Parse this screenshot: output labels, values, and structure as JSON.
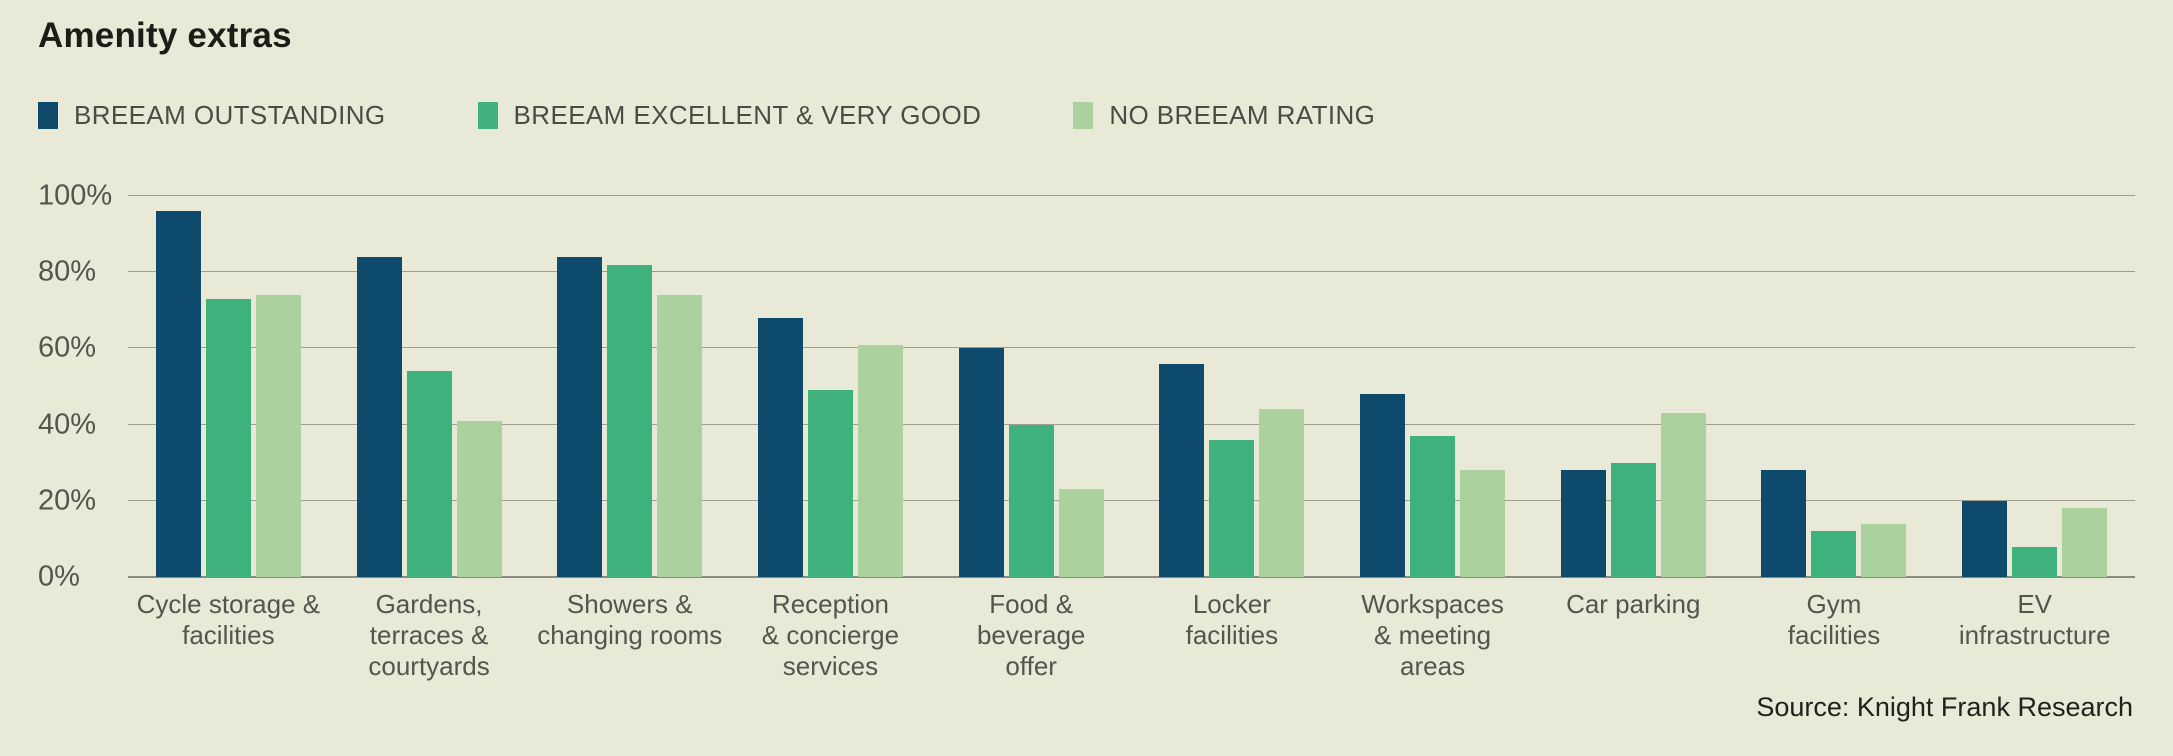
{
  "title": "Amenity extras",
  "source": "Source: Knight Frank Research",
  "colors": {
    "background": "#e9e9d8",
    "gridline": "#9d9d92",
    "axis_text": "#54554c",
    "title_text": "#1b1d16"
  },
  "legend": [
    {
      "label": "BREEAM OUTSTANDING",
      "color": "#0d4a6b"
    },
    {
      "label": "BREEAM EXCELLENT & VERY GOOD",
      "color": "#3eb17d"
    },
    {
      "label": "NO BREEAM RATING",
      "color": "#abd29e"
    }
  ],
  "chart_data": {
    "type": "bar",
    "title": "Amenity extras",
    "categories": [
      "Cycle storage & facilities",
      "Gardens, terraces & courtyards",
      "Showers & changing rooms",
      "Reception & concierge services",
      "Food & beverage offer",
      "Locker facilities",
      "Workspaces & meeting areas",
      "Car parking",
      "Gym facilities",
      "EV infrastructure"
    ],
    "category_label_lines": [
      [
        "Cycle storage &",
        "facilities"
      ],
      [
        "Gardens,",
        "terraces &",
        "courtyards"
      ],
      [
        "Showers &",
        "changing rooms"
      ],
      [
        "Reception",
        "& concierge",
        "services"
      ],
      [
        "Food &",
        "beverage",
        "offer"
      ],
      [
        "Locker",
        "facilities"
      ],
      [
        "Workspaces",
        "& meeting",
        "areas"
      ],
      [
        "Car parking"
      ],
      [
        "Gym",
        "facilities"
      ],
      [
        "EV",
        "infrastructure"
      ]
    ],
    "series": [
      {
        "name": "BREEAM OUTSTANDING",
        "color": "#0d4a6b",
        "values": [
          96,
          84,
          84,
          68,
          60,
          56,
          48,
          28,
          28,
          20
        ]
      },
      {
        "name": "BREEAM EXCELLENT & VERY GOOD",
        "color": "#3eb17d",
        "values": [
          73,
          54,
          82,
          49,
          40,
          36,
          37,
          30,
          12,
          8
        ]
      },
      {
        "name": "NO BREEAM RATING",
        "color": "#abd29e",
        "values": [
          74,
          41,
          74,
          61,
          23,
          44,
          28,
          43,
          14,
          18
        ]
      }
    ],
    "xlabel": "",
    "ylabel": "",
    "ylim": [
      0,
      100
    ],
    "yticks": [
      100,
      80,
      60,
      40,
      20,
      0
    ],
    "ytick_labels": [
      "100%",
      "80%",
      "60%",
      "40%",
      "20%",
      "0%"
    ],
    "grid": true,
    "legend_position": "top-left"
  }
}
